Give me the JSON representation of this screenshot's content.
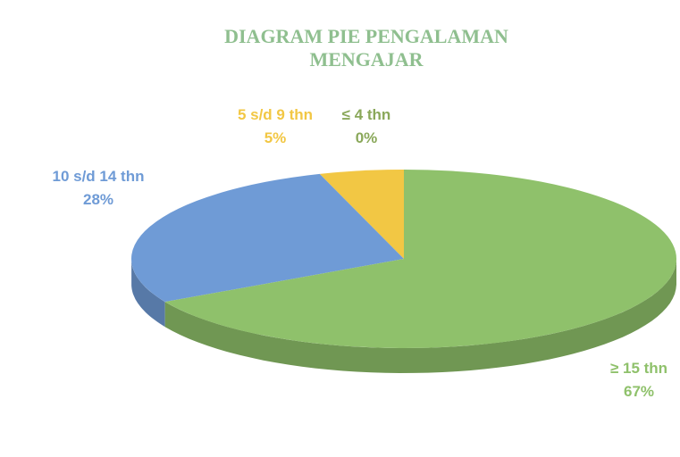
{
  "chart_data": {
    "type": "pie",
    "title": "DIAGRAM PIE PENGALAMAN MENGAJAR",
    "categories": [
      "≤ 4 thn",
      "5 s/d 9 thn",
      "10 s/d 14 thn",
      "≥ 15 thn"
    ],
    "values": [
      0,
      5,
      28,
      67
    ],
    "value_labels": [
      "0%",
      "5%",
      "28%",
      "67%"
    ],
    "colors": [
      "#8aa85a",
      "#f2c744",
      "#6f9bd6",
      "#8fc16b"
    ]
  }
}
